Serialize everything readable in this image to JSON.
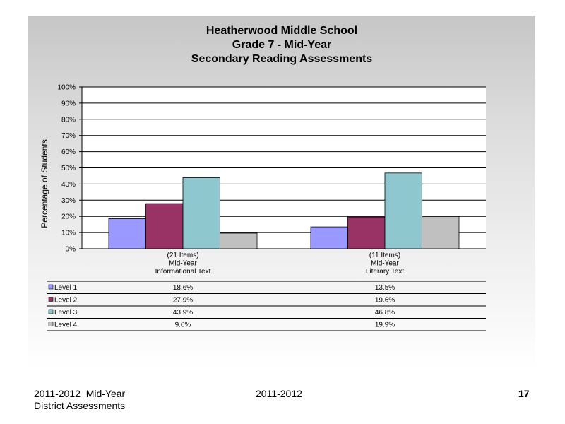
{
  "slide": {
    "footer_left_line1": "2011-2012  Mid-Year",
    "footer_left_line2": "District Assessments",
    "footer_center": "2011-2012",
    "page_number": "17"
  },
  "chart_data": {
    "type": "bar",
    "title_lines": [
      "Heatherwood Middle School",
      "Grade 7 - Mid-Year",
      "Secondary Reading Assessments"
    ],
    "ylabel": "Percentage of Students",
    "xlabel": "",
    "ylim": [
      0,
      100
    ],
    "yticks": [
      0,
      10,
      20,
      30,
      40,
      50,
      60,
      70,
      80,
      90,
      100
    ],
    "ytick_labels": [
      "0%",
      "10%",
      "20%",
      "30%",
      "40%",
      "50%",
      "60%",
      "70%",
      "80%",
      "90%",
      "100%"
    ],
    "grid": true,
    "categories": [
      [
        "(21 Items)",
        "Mid-Year",
        "Informational Text"
      ],
      [
        "(11 Items)",
        "Mid-Year",
        "Literary Text"
      ]
    ],
    "series": [
      {
        "name": "Level 1",
        "color": "#9999ff",
        "values": [
          18.6,
          13.5
        ],
        "labels": [
          "18.6%",
          "13.5%"
        ]
      },
      {
        "name": "Level 2",
        "color": "#993366",
        "values": [
          27.9,
          19.6
        ],
        "labels": [
          "27.9%",
          "19.6%"
        ]
      },
      {
        "name": "Level 3",
        "color": "#8fc7cf",
        "values": [
          43.9,
          46.8
        ],
        "labels": [
          "43.9%",
          "46.8%"
        ]
      },
      {
        "name": "Level 4",
        "color": "#c0c0c0",
        "values": [
          9.6,
          19.9
        ],
        "labels": [
          "9.6%",
          "19.9%"
        ]
      }
    ],
    "legend": "data-table"
  }
}
